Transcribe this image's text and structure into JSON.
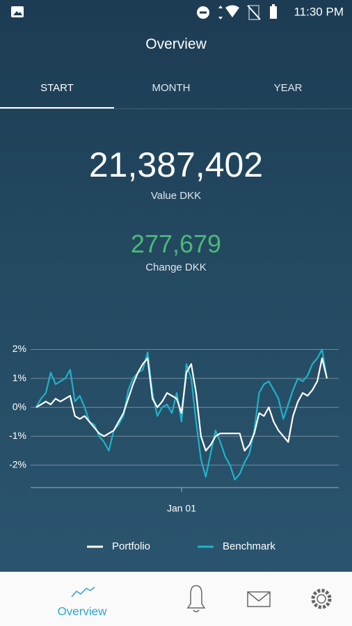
{
  "status_bar": {
    "time": "11:30 PM"
  },
  "header": {
    "title": "Overview"
  },
  "tabs": [
    "START",
    "MONTH",
    "YEAR"
  ],
  "active_tab": 0,
  "summary": {
    "value": "21,387,402",
    "value_label": "Value DKK",
    "change": "277,679",
    "change_label": "Change DKK"
  },
  "chart_data": {
    "type": "line",
    "categories": [
      null,
      null,
      null,
      null,
      null,
      null,
      null,
      null,
      null,
      null,
      null,
      null,
      null,
      null,
      null,
      null,
      null,
      null,
      null,
      null,
      null,
      null,
      null,
      null,
      null,
      null,
      null,
      null,
      null,
      null,
      "Jan 01",
      null,
      null,
      null,
      null,
      null,
      null,
      null,
      null,
      null,
      null,
      null,
      null,
      null,
      null,
      null,
      null,
      null,
      null,
      null,
      null,
      null,
      null,
      null,
      null,
      null,
      null,
      null,
      null,
      null,
      null
    ],
    "series": [
      {
        "name": "Portfolio",
        "color": "#ffffff",
        "values": [
          0.0,
          0.1,
          0.2,
          0.1,
          0.3,
          0.2,
          0.3,
          0.4,
          -0.3,
          -0.4,
          -0.3,
          -0.5,
          -0.7,
          -0.9,
          -1.0,
          -0.9,
          -0.8,
          -0.5,
          -0.2,
          0.3,
          0.8,
          1.2,
          1.5,
          1.7,
          0.3,
          0.0,
          0.2,
          0.5,
          0.4,
          0.3,
          -0.2,
          1.2,
          1.5,
          0.5,
          -1.0,
          -1.5,
          -1.3,
          -1.0,
          -0.9,
          -0.9,
          -0.9,
          -0.9,
          -0.9,
          -1.5,
          -1.3,
          -0.9,
          -0.2,
          -0.3,
          0.0,
          -0.5,
          -0.8,
          -1.0,
          -1.2,
          -0.3,
          0.2,
          0.5,
          0.4,
          0.6,
          0.9,
          1.7,
          1.0
        ]
      },
      {
        "name": "Benchmark",
        "color": "#1fb3c8",
        "values": [
          0.0,
          0.3,
          0.5,
          1.2,
          0.8,
          0.9,
          1.0,
          1.3,
          0.2,
          0.4,
          0.0,
          -0.5,
          -0.6,
          -1.0,
          -1.2,
          -1.5,
          -0.8,
          -0.6,
          -0.3,
          0.6,
          1.0,
          1.2,
          1.3,
          1.9,
          0.5,
          -0.3,
          0.0,
          0.1,
          -0.2,
          0.5,
          -0.5,
          1.5,
          1.0,
          -0.5,
          -1.8,
          -2.4,
          -1.6,
          -0.8,
          -1.2,
          -1.7,
          -2.0,
          -2.5,
          -2.3,
          -1.9,
          -1.6,
          -0.8,
          0.5,
          0.8,
          0.9,
          0.6,
          0.3,
          -0.4,
          0.1,
          0.6,
          1.0,
          0.9,
          1.1,
          1.5,
          1.7,
          2.0,
          1.0
        ]
      }
    ],
    "ylim": [
      -2.75,
      2.3
    ],
    "yticks": [
      {
        "value": -2,
        "label": "-2%"
      },
      {
        "value": -1,
        "label": "-1%"
      },
      {
        "value": 0,
        "label": "0%"
      },
      {
        "value": 1,
        "label": "1%"
      },
      {
        "value": 2,
        "label": "2%"
      }
    ],
    "grid": true
  },
  "nav": {
    "overview": "Overview"
  }
}
